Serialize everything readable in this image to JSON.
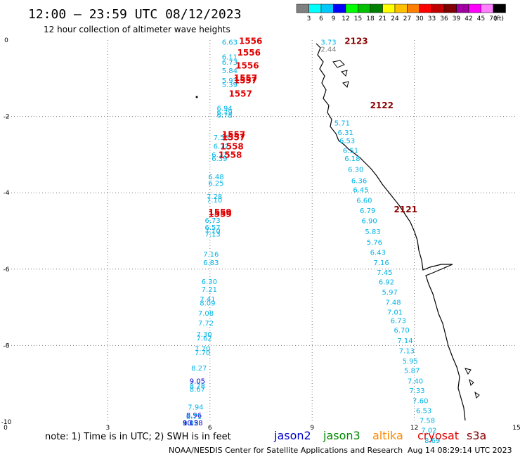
{
  "header": {
    "title": "12:00 – 23:59 UTC 08/12/2023",
    "subtitle": "12 hour collection of altimeter wave heights"
  },
  "colorbar": {
    "unit": "(ft)",
    "bins": [
      {
        "label": "3",
        "color": "#808080"
      },
      {
        "label": "6",
        "color": "#00ffff"
      },
      {
        "label": "9",
        "color": "#00c8ff"
      },
      {
        "label": "12",
        "color": "#0000ff"
      },
      {
        "label": "15",
        "color": "#00ff00"
      },
      {
        "label": "18",
        "color": "#00c000"
      },
      {
        "label": "21",
        "color": "#008000"
      },
      {
        "label": "24",
        "color": "#ffff00"
      },
      {
        "label": "27",
        "color": "#ffc000"
      },
      {
        "label": "30",
        "color": "#ff8000"
      },
      {
        "label": "33",
        "color": "#ff0000"
      },
      {
        "label": "36",
        "color": "#c00000"
      },
      {
        "label": "39",
        "color": "#800000"
      },
      {
        "label": "42",
        "color": "#a000a0"
      },
      {
        "label": "45",
        "color": "#ff00ff"
      },
      {
        "label": "70",
        "color": "#ff80ff"
      },
      {
        "label": "",
        "color": "#000000"
      }
    ]
  },
  "footer": {
    "note": "note: 1) Time is in UTC; 2) SWH is in feet",
    "credit": "NOAA/NESDIS Center for Satellite Applications and Research",
    "timestamp": "Aug 14 08:29:14 UTC 2023",
    "missions": [
      {
        "name": "jason2",
        "color": "#0000cc"
      },
      {
        "name": "jason3",
        "color": "#008800"
      },
      {
        "name": "altika",
        "color": "#ff8800"
      },
      {
        "name": "cryosat",
        "color": "#dd0000"
      },
      {
        "name": "s3a",
        "color": "#880000"
      }
    ]
  },
  "chart_data": {
    "type": "scatter",
    "xlim": [
      0,
      15
    ],
    "ylim": [
      -10,
      0
    ],
    "x_ticks": [
      "0",
      "3",
      "6",
      "9",
      "12",
      "15"
    ],
    "y_ticks": [
      "0",
      "-2",
      "-4",
      "-6",
      "-8",
      "-10"
    ],
    "grid": true,
    "colors": {
      "swh_cyan": "#00b4e6",
      "swh_blue": "#0000cc",
      "swh_gray": "#808080",
      "time_red": "#e00000",
      "time_darkred": "#8b0000",
      "coast": "#000000"
    },
    "track_west_swh": [
      {
        "x": 6.35,
        "y": -0.05,
        "label": "6.63",
        "c": "swh_cyan"
      },
      {
        "x": 6.35,
        "y": -0.43,
        "label": "6.11",
        "c": "swh_cyan"
      },
      {
        "x": 6.35,
        "y": -0.57,
        "label": "6.73",
        "c": "swh_cyan"
      },
      {
        "x": 6.35,
        "y": -0.79,
        "label": "5.84",
        "c": "swh_cyan"
      },
      {
        "x": 6.35,
        "y": -1.05,
        "label": "5.93",
        "c": "swh_cyan"
      },
      {
        "x": 6.35,
        "y": -1.16,
        "label": "5.39",
        "c": "swh_cyan"
      },
      {
        "x": 6.2,
        "y": -1.78,
        "label": "6.94",
        "c": "swh_cyan"
      },
      {
        "x": 6.2,
        "y": -1.88,
        "label": "6.79",
        "c": "swh_cyan"
      },
      {
        "x": 6.2,
        "y": -1.96,
        "label": "6.78",
        "c": "swh_cyan"
      },
      {
        "x": 6.1,
        "y": -2.54,
        "label": "7.56",
        "c": "swh_cyan"
      },
      {
        "x": 6.1,
        "y": -2.77,
        "label": "6.72",
        "c": "swh_cyan"
      },
      {
        "x": 6.05,
        "y": -2.99,
        "label": "6.72",
        "c": "swh_cyan"
      },
      {
        "x": 6.05,
        "y": -3.09,
        "label": "6.39",
        "c": "swh_cyan"
      },
      {
        "x": 5.95,
        "y": -3.57,
        "label": "6.48",
        "c": "swh_cyan"
      },
      {
        "x": 5.95,
        "y": -3.74,
        "label": "6.25",
        "c": "swh_cyan"
      },
      {
        "x": 5.9,
        "y": -4.09,
        "label": "7.28",
        "c": "swh_cyan"
      },
      {
        "x": 5.9,
        "y": -4.18,
        "label": "7.10",
        "c": "swh_cyan"
      },
      {
        "x": 5.85,
        "y": -4.71,
        "label": "6.73",
        "c": "swh_cyan"
      },
      {
        "x": 5.85,
        "y": -4.9,
        "label": "6.57",
        "c": "swh_cyan"
      },
      {
        "x": 5.85,
        "y": -4.99,
        "label": "7.10",
        "c": "swh_cyan"
      },
      {
        "x": 5.85,
        "y": -5.07,
        "label": "7.13",
        "c": "swh_cyan"
      },
      {
        "x": 5.8,
        "y": -5.6,
        "label": "7.16",
        "c": "swh_cyan"
      },
      {
        "x": 5.8,
        "y": -5.82,
        "label": "6.83",
        "c": "swh_cyan"
      },
      {
        "x": 5.75,
        "y": -6.32,
        "label": "6.30",
        "c": "swh_cyan"
      },
      {
        "x": 5.75,
        "y": -6.52,
        "label": "7.21",
        "c": "swh_cyan"
      },
      {
        "x": 5.7,
        "y": -6.78,
        "label": "7.41",
        "c": "swh_cyan"
      },
      {
        "x": 5.7,
        "y": -6.88,
        "label": "8.09",
        "c": "swh_cyan"
      },
      {
        "x": 5.65,
        "y": -7.15,
        "label": "7.08",
        "c": "swh_cyan"
      },
      {
        "x": 5.65,
        "y": -7.4,
        "label": "7.72",
        "c": "swh_cyan"
      },
      {
        "x": 5.6,
        "y": -7.7,
        "label": "7.30",
        "c": "swh_cyan"
      },
      {
        "x": 5.6,
        "y": -7.8,
        "label": "7.62",
        "c": "swh_cyan"
      },
      {
        "x": 5.55,
        "y": -8.08,
        "label": "7.70",
        "c": "swh_cyan"
      },
      {
        "x": 5.55,
        "y": -8.18,
        "label": "7.70",
        "c": "swh_cyan"
      },
      {
        "x": 5.45,
        "y": -8.58,
        "label": "8.27",
        "c": "swh_cyan"
      },
      {
        "x": 5.4,
        "y": -8.92,
        "label": "9.05",
        "c": "swh_blue"
      },
      {
        "x": 5.4,
        "y": -9.05,
        "label": "8.78",
        "c": "swh_cyan"
      },
      {
        "x": 5.4,
        "y": -9.13,
        "label": "8.67",
        "c": "swh_cyan"
      },
      {
        "x": 5.35,
        "y": -9.6,
        "label": "7.94",
        "c": "swh_cyan"
      },
      {
        "x": 5.3,
        "y": -9.82,
        "label": "8.96",
        "c": "swh_blue"
      },
      {
        "x": 5.3,
        "y": -9.85,
        "label": "8.71",
        "c": "swh_cyan"
      },
      {
        "x": 5.2,
        "y": -10.02,
        "label": "8.02",
        "c": "swh_cyan"
      },
      {
        "x": 5.2,
        "y": -10.02,
        "label": "10.38",
        "c": "swh_blue"
      },
      {
        "x": 5.2,
        "y": -10.02,
        "label": "9.15",
        "c": "swh_blue"
      }
    ],
    "track_east_swh": [
      {
        "x": 9.25,
        "y": -0.05,
        "label": "3.73",
        "c": "swh_cyan"
      },
      {
        "x": 9.25,
        "y": -0.23,
        "label": "2.44",
        "c": "swh_gray"
      },
      {
        "x": 9.65,
        "y": -2.16,
        "label": "5.71",
        "c": "swh_cyan"
      },
      {
        "x": 9.75,
        "y": -2.41,
        "label": "6.31",
        "c": "swh_cyan"
      },
      {
        "x": 9.8,
        "y": -2.62,
        "label": "6.53",
        "c": "swh_cyan"
      },
      {
        "x": 9.9,
        "y": -2.88,
        "label": "6.51",
        "c": "swh_cyan"
      },
      {
        "x": 9.95,
        "y": -3.09,
        "label": "6.18",
        "c": "swh_cyan"
      },
      {
        "x": 10.05,
        "y": -3.38,
        "label": "6.30",
        "c": "swh_cyan"
      },
      {
        "x": 10.15,
        "y": -3.67,
        "label": "6.36",
        "c": "swh_cyan"
      },
      {
        "x": 10.2,
        "y": -3.91,
        "label": "6.45",
        "c": "swh_cyan"
      },
      {
        "x": 10.3,
        "y": -4.19,
        "label": "6.60",
        "c": "swh_cyan"
      },
      {
        "x": 10.4,
        "y": -4.46,
        "label": "6.79",
        "c": "swh_cyan"
      },
      {
        "x": 10.45,
        "y": -4.72,
        "label": "6.90",
        "c": "swh_cyan"
      },
      {
        "x": 10.55,
        "y": -5.01,
        "label": "5.83",
        "c": "swh_cyan"
      },
      {
        "x": 10.6,
        "y": -5.29,
        "label": "5.76",
        "c": "swh_cyan"
      },
      {
        "x": 10.7,
        "y": -5.55,
        "label": "6.43",
        "c": "swh_cyan"
      },
      {
        "x": 10.8,
        "y": -5.82,
        "label": "7.16",
        "c": "swh_cyan"
      },
      {
        "x": 10.9,
        "y": -6.08,
        "label": "7.45",
        "c": "swh_cyan"
      },
      {
        "x": 10.95,
        "y": -6.33,
        "label": "6.92",
        "c": "swh_cyan"
      },
      {
        "x": 11.05,
        "y": -6.59,
        "label": "5.97",
        "c": "swh_cyan"
      },
      {
        "x": 11.15,
        "y": -6.86,
        "label": "7.48",
        "c": "swh_cyan"
      },
      {
        "x": 11.2,
        "y": -7.12,
        "label": "7.01",
        "c": "swh_cyan"
      },
      {
        "x": 11.3,
        "y": -7.34,
        "label": "6.73",
        "c": "swh_cyan"
      },
      {
        "x": 11.4,
        "y": -7.59,
        "label": "6.70",
        "c": "swh_cyan"
      },
      {
        "x": 11.5,
        "y": -7.86,
        "label": "7.14",
        "c": "swh_cyan"
      },
      {
        "x": 11.55,
        "y": -8.13,
        "label": "7.13",
        "c": "swh_cyan"
      },
      {
        "x": 11.65,
        "y": -8.4,
        "label": "5.95",
        "c": "swh_cyan"
      },
      {
        "x": 11.7,
        "y": -8.65,
        "label": "5.87",
        "c": "swh_cyan"
      },
      {
        "x": 11.8,
        "y": -8.92,
        "label": "7.40",
        "c": "swh_cyan"
      },
      {
        "x": 11.85,
        "y": -9.17,
        "label": "7.33",
        "c": "swh_cyan"
      },
      {
        "x": 11.95,
        "y": -9.44,
        "label": "7.60",
        "c": "swh_cyan"
      },
      {
        "x": 12.05,
        "y": -9.7,
        "label": "6.53",
        "c": "swh_cyan"
      },
      {
        "x": 12.15,
        "y": -9.95,
        "label": "7.58",
        "c": "swh_cyan"
      },
      {
        "x": 12.2,
        "y": -10.21,
        "label": "7.02",
        "c": "swh_cyan"
      },
      {
        "x": 12.3,
        "y": -10.48,
        "label": "8.69",
        "c": "swh_cyan"
      }
    ],
    "time_labels": [
      {
        "x": 6.85,
        "y": -0.03,
        "label": "1556",
        "c": "time_red"
      },
      {
        "x": 6.8,
        "y": -0.33,
        "label": "1556",
        "c": "time_red"
      },
      {
        "x": 6.75,
        "y": -0.67,
        "label": "1556",
        "c": "time_red"
      },
      {
        "x": 6.7,
        "y": -0.99,
        "label": "1557",
        "c": "time_red"
      },
      {
        "x": 6.7,
        "y": -1.06,
        "label": "1557",
        "c": "time_red"
      },
      {
        "x": 6.55,
        "y": -1.41,
        "label": "1557",
        "c": "time_red"
      },
      {
        "x": 6.35,
        "y": -2.48,
        "label": "1557",
        "c": "time_red"
      },
      {
        "x": 6.35,
        "y": -2.55,
        "label": "1557",
        "c": "time_red"
      },
      {
        "x": 6.3,
        "y": -2.79,
        "label": "1558",
        "c": "time_red"
      },
      {
        "x": 6.25,
        "y": -3.01,
        "label": "1558",
        "c": "time_red"
      },
      {
        "x": 5.95,
        "y": -4.51,
        "label": "1559",
        "c": "time_red"
      },
      {
        "x": 5.95,
        "y": -4.56,
        "label": "1559",
        "c": "time_red"
      },
      {
        "x": 9.95,
        "y": -0.03,
        "label": "2123",
        "c": "time_darkred"
      },
      {
        "x": 10.7,
        "y": -1.71,
        "label": "2122",
        "c": "time_darkred"
      },
      {
        "x": 11.4,
        "y": -4.44,
        "label": "2121",
        "c": "time_darkred"
      }
    ]
  }
}
